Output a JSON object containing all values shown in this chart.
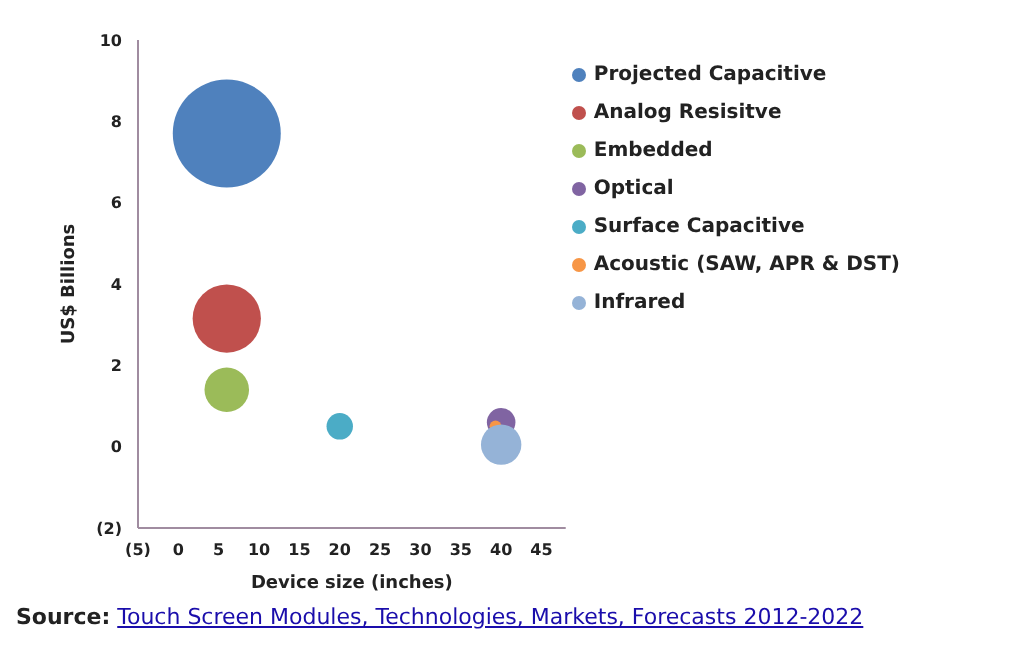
{
  "chart_data": {
    "type": "bubble",
    "xlabel": "Device size (inches)",
    "ylabel": "US$ Billions",
    "xlim": [
      -5,
      48
    ],
    "xticks": [
      {
        "value": -5,
        "label": "(5)"
      },
      0,
      5,
      10,
      15,
      20,
      25,
      30,
      35,
      40,
      45
    ],
    "ylim": [
      -2,
      10
    ],
    "yticks": [
      {
        "value": -2,
        "label": "(2)"
      },
      0,
      2,
      4,
      6,
      8,
      10
    ],
    "grid": false,
    "legend": "top right",
    "annotations": [
      "Source: Touch Screen Modules, Technologies, Markets, Forecasts 2012-2022"
    ],
    "series": [
      {
        "name": "Projected Capacitive",
        "color": "#4f81bd",
        "x": [
          6
        ],
        "values": [
          7.7
        ],
        "sizes": [
          1
        ]
      },
      {
        "name": "Analog Resisitve",
        "color": "#c0504d",
        "x": [
          6
        ],
        "values": [
          3.15
        ],
        "sizes": [
          0.4
        ]
      },
      {
        "name": "Embedded",
        "color": "#9bbb59",
        "x": [
          6
        ],
        "values": [
          1.4
        ],
        "sizes": [
          0.17
        ]
      },
      {
        "name": "Optical",
        "color": "#8064a2",
        "x": [
          40
        ],
        "values": [
          0.6
        ],
        "sizes": [
          0.07
        ]
      },
      {
        "name": "Surface Capacitive",
        "color": "#4bacc6",
        "x": [
          20
        ],
        "values": [
          0.5
        ],
        "sizes": [
          0.06
        ]
      },
      {
        "name": "Acoustic (SAW, APR & DST)",
        "color": "#f79646",
        "x": [
          39.3
        ],
        "values": [
          0.5
        ],
        "sizes": [
          0.012
        ]
      },
      {
        "name": "Infrared",
        "color": "#95b3d7",
        "x": [
          40
        ],
        "values": [
          0.05
        ],
        "sizes": [
          0.14
        ]
      }
    ]
  }
}
